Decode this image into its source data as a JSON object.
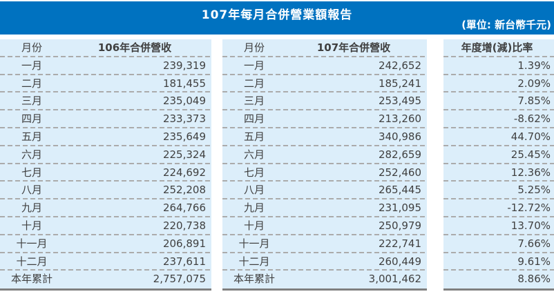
{
  "title_bar": {
    "title": "107年每月合併營業額報告",
    "unit": "(單位: 新台幣千元)"
  },
  "colors": {
    "bar_bg": "#0072C0",
    "bar_text": "#FFFFFF",
    "table_bg": "#DCEEFA",
    "divider": "#ABABAB",
    "bottom_border": "#7F7F7F",
    "text": "#404040"
  },
  "tables": [
    {
      "name": "revenue-106",
      "month_header": "月份",
      "value_header": "106年合併營收",
      "rows": [
        {
          "month": "一月",
          "value": "239,319"
        },
        {
          "month": "二月",
          "value": "181,455"
        },
        {
          "month": "三月",
          "value": "235,049"
        },
        {
          "month": "四月",
          "value": "233,373"
        },
        {
          "month": "五月",
          "value": "235,649"
        },
        {
          "month": "六月",
          "value": "225,324"
        },
        {
          "month": "七月",
          "value": "224,692"
        },
        {
          "month": "八月",
          "value": "252,208"
        },
        {
          "month": "九月",
          "value": "264,766"
        },
        {
          "month": "十月",
          "value": "220,738"
        },
        {
          "month": "十一月",
          "value": "206,891"
        },
        {
          "month": "十二月",
          "value": "237,611"
        },
        {
          "month": "本年累計",
          "value": "2,757,075"
        }
      ]
    },
    {
      "name": "revenue-107",
      "month_header": "月份",
      "value_header": "107年合併營收",
      "rows": [
        {
          "month": "一月",
          "value": "242,652"
        },
        {
          "month": "二月",
          "value": "185,241"
        },
        {
          "month": "三月",
          "value": "253,495"
        },
        {
          "month": "四月",
          "value": "213,260"
        },
        {
          "month": "五月",
          "value": "340,986"
        },
        {
          "month": "六月",
          "value": "282,659"
        },
        {
          "month": "七月",
          "value": "252,460"
        },
        {
          "month": "八月",
          "value": "265,445"
        },
        {
          "month": "九月",
          "value": "231,095"
        },
        {
          "month": "十月",
          "value": "250,979"
        },
        {
          "month": "十一月",
          "value": "222,741"
        },
        {
          "month": "十二月",
          "value": "260,449"
        },
        {
          "month": "本年累計",
          "value": "3,001,462"
        }
      ]
    },
    {
      "name": "yoy-ratio",
      "value_header": "年度增(減)比率",
      "rows": [
        {
          "value": "1.39%"
        },
        {
          "value": "2.09%"
        },
        {
          "value": "7.85%"
        },
        {
          "value": "-8.62%"
        },
        {
          "value": "44.70%"
        },
        {
          "value": "25.45%"
        },
        {
          "value": "12.36%"
        },
        {
          "value": "5.25%"
        },
        {
          "value": "-12.72%"
        },
        {
          "value": "13.70%"
        },
        {
          "value": "7.66%"
        },
        {
          "value": "9.61%"
        },
        {
          "value": "8.86%"
        }
      ]
    }
  ]
}
